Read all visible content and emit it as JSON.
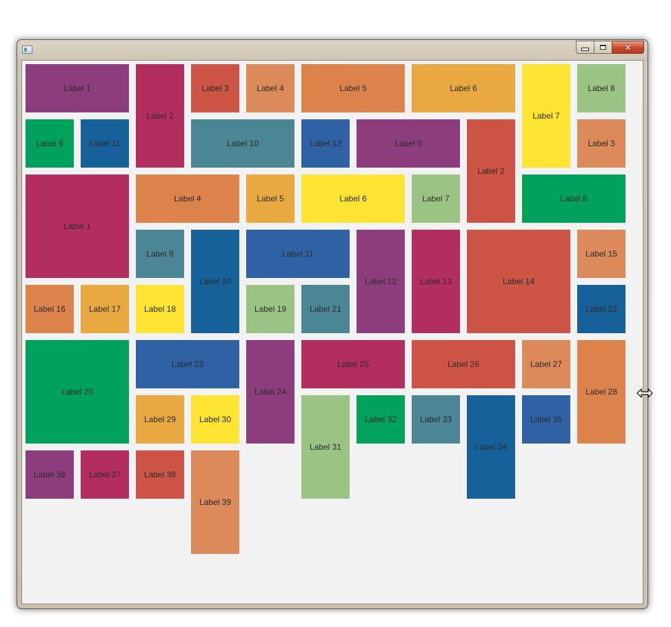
{
  "window": {
    "title": "",
    "buttons": {
      "minimize": "minimize",
      "maximize": "maximize",
      "close": "close"
    },
    "client_background": "#f2f2f2"
  },
  "palette": {
    "purple": "#8b3d7c",
    "crimson": "#b22e5c",
    "red": "#cc5545",
    "salmon": "#dc8a59",
    "orange": "#dc844b",
    "gold": "#e8a941",
    "yellow": "#fde332",
    "lightgreen": "#9bc384",
    "green": "#00a15a",
    "navy": "#17619b",
    "blue": "#2e62a4",
    "teal": "#4a8694"
  },
  "tiles": [
    {
      "label": "Label 1",
      "color": "purple"
    },
    {
      "label": "Label 2",
      "color": "crimson"
    },
    {
      "label": "Label 3",
      "color": "red"
    },
    {
      "label": "Label 4",
      "color": "salmon"
    },
    {
      "label": "Label 5",
      "color": "orange"
    },
    {
      "label": "Label 6",
      "color": "gold"
    },
    {
      "label": "Label 7",
      "color": "yellow"
    },
    {
      "label": "Label 8",
      "color": "lightgreen"
    },
    {
      "label": "Label 9",
      "color": "green"
    },
    {
      "label": "Label 11",
      "color": "navy"
    },
    {
      "label": "Label 10",
      "color": "teal"
    },
    {
      "label": "Label 12",
      "color": "blue"
    },
    {
      "label": "Label 0",
      "color": "purple"
    },
    {
      "label": "Label 2",
      "color": "red"
    },
    {
      "label": "Label 3",
      "color": "salmon"
    },
    {
      "label": "Label 1",
      "color": "crimson"
    },
    {
      "label": "Label 4",
      "color": "orange"
    },
    {
      "label": "Label 5",
      "color": "gold"
    },
    {
      "label": "Label 6",
      "color": "yellow"
    },
    {
      "label": "Label 7",
      "color": "lightgreen"
    },
    {
      "label": "Label 8",
      "color": "green"
    },
    {
      "label": "Label 9",
      "color": "teal"
    },
    {
      "label": "Label 10",
      "color": "navy"
    },
    {
      "label": "Label 11",
      "color": "blue"
    },
    {
      "label": "Label 12",
      "color": "purple"
    },
    {
      "label": "Label 13",
      "color": "crimson"
    },
    {
      "label": "Label 14",
      "color": "red"
    },
    {
      "label": "Label 15",
      "color": "salmon"
    },
    {
      "label": "Label 16",
      "color": "orange"
    },
    {
      "label": "Label 17",
      "color": "gold"
    },
    {
      "label": "Label 18",
      "color": "yellow"
    },
    {
      "label": "Label 19",
      "color": "lightgreen"
    },
    {
      "label": "Label 21",
      "color": "teal"
    },
    {
      "label": "Label 22",
      "color": "navy"
    },
    {
      "label": "Label 20",
      "color": "green"
    },
    {
      "label": "Label 23",
      "color": "blue"
    },
    {
      "label": "Label 24",
      "color": "purple"
    },
    {
      "label": "Label 25",
      "color": "crimson"
    },
    {
      "label": "Label 26",
      "color": "red"
    },
    {
      "label": "Label 27",
      "color": "salmon"
    },
    {
      "label": "Label 28",
      "color": "orange"
    },
    {
      "label": "Label 29",
      "color": "gold"
    },
    {
      "label": "Label 30",
      "color": "yellow"
    },
    {
      "label": "Label 31",
      "color": "lightgreen"
    },
    {
      "label": "Label 32",
      "color": "green"
    },
    {
      "label": "Label 33",
      "color": "teal"
    },
    {
      "label": "Label 34",
      "color": "navy"
    },
    {
      "label": "Label 35",
      "color": "blue"
    },
    {
      "label": "Label 36",
      "color": "purple"
    },
    {
      "label": "Label 37",
      "color": "crimson"
    },
    {
      "label": "Label 38",
      "color": "red"
    },
    {
      "label": "Label 39",
      "color": "salmon"
    }
  ],
  "cursor": {
    "icon": "horizontal-resize-cursor-icon"
  }
}
